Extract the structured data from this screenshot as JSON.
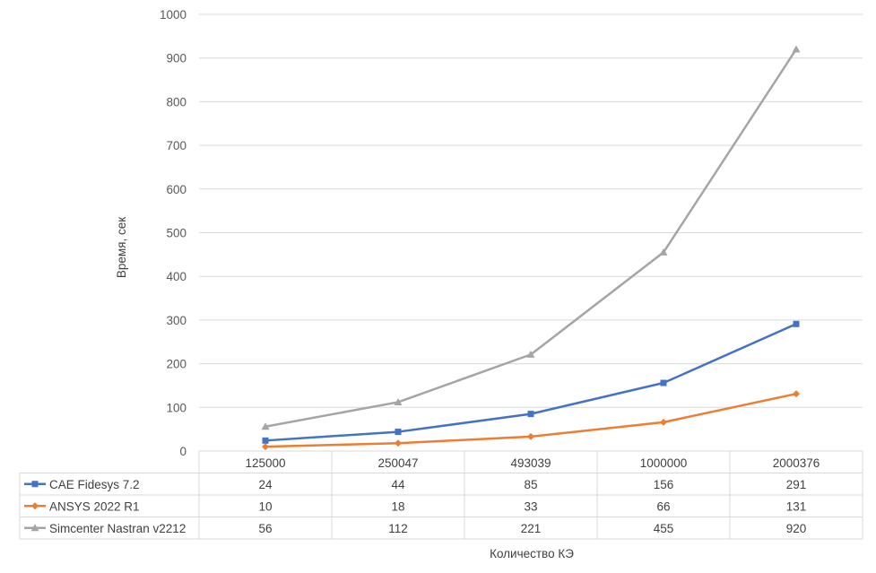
{
  "chart_data": {
    "type": "line",
    "categories": [
      "125000",
      "250047",
      "493039",
      "1000000",
      "2000376"
    ],
    "series": [
      {
        "name": "CAE Fidesys 7.2",
        "values": [
          24,
          44,
          85,
          156,
          291
        ],
        "color": "#4472C4",
        "marker": "square"
      },
      {
        "name": "ANSYS 2022 R1",
        "values": [
          10,
          18,
          33,
          66,
          131
        ],
        "color": "#ED7D31",
        "marker": "diamond"
      },
      {
        "name": "Simcenter Nastran v2212",
        "values": [
          56,
          112,
          221,
          455,
          920
        ],
        "color": "#A5A5A5",
        "marker": "triangle"
      }
    ],
    "xlabel": "Количество КЭ",
    "ylabel": "Время, сек",
    "ylim": [
      0,
      1000
    ],
    "yticks": [
      0,
      100,
      200,
      300,
      400,
      500,
      600,
      700,
      800,
      900,
      1000
    ],
    "grid": true,
    "legend": "data-table"
  }
}
